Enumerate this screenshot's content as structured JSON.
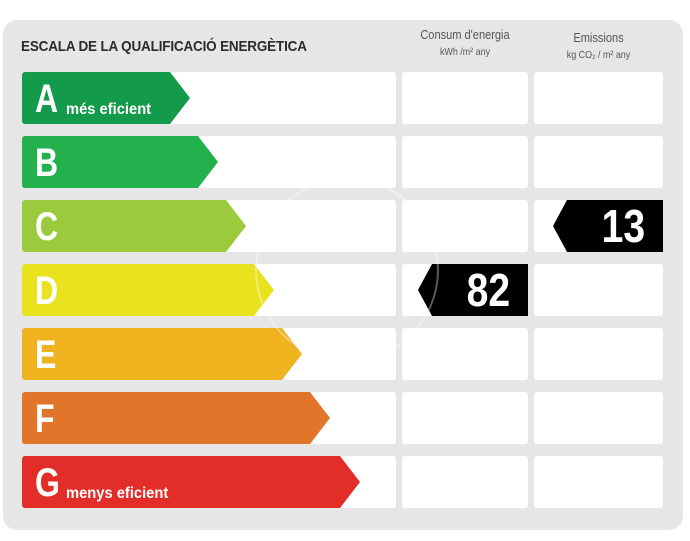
{
  "title": "ESCALA DE LA QUALIFICACIÓ ENERGÈTICA",
  "columns": {
    "energy": {
      "label": "Consum d'energia",
      "unit": "kWh /m² any"
    },
    "emissions": {
      "label": "Emissions",
      "unit": "kg CO₂ / m² any"
    }
  },
  "ratings": [
    {
      "letter": "A",
      "label": "més eficient",
      "color": "#139a4a"
    },
    {
      "letter": "B",
      "label": "",
      "color": "#22b14c"
    },
    {
      "letter": "C",
      "label": "",
      "color": "#9bca3c"
    },
    {
      "letter": "D",
      "label": "",
      "color": "#e8e21f"
    },
    {
      "letter": "E",
      "label": "",
      "color": "#efb31f"
    },
    {
      "letter": "F",
      "label": "",
      "color": "#e1752a"
    },
    {
      "letter": "G",
      "label": "menys eficient",
      "color": "#e32d29"
    }
  ],
  "energy_value": {
    "value": "82",
    "rating": "D"
  },
  "emissions_value": {
    "value": "13",
    "rating": "C"
  }
}
